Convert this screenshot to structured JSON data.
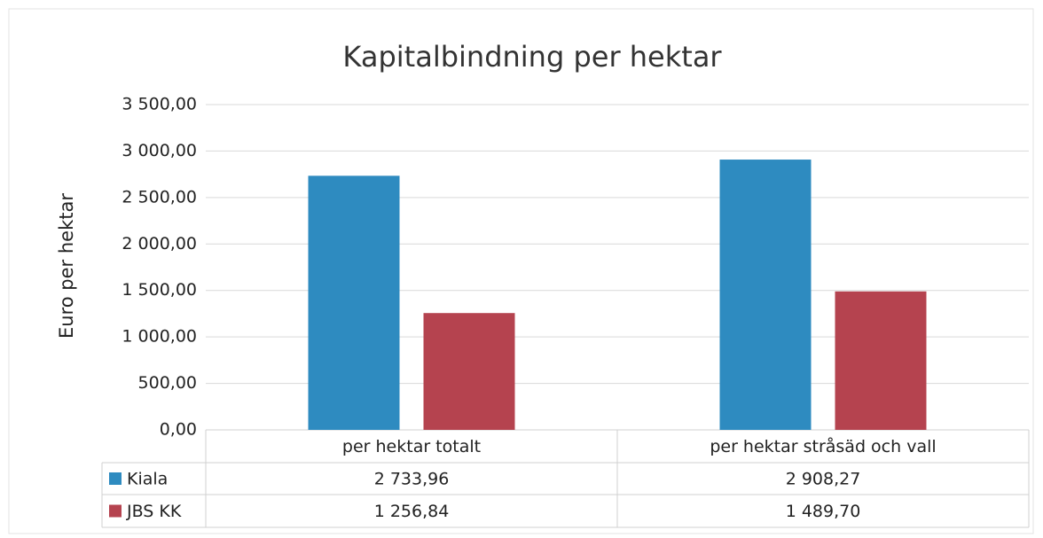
{
  "chart_data": {
    "type": "bar",
    "title": "Kapitalbindning per hektar",
    "y_label": "Euro per hektar",
    "categories": [
      "per hektar totalt",
      "per hektar stråsäd och vall"
    ],
    "series": [
      {
        "name": "Kiala",
        "color": "#2e8bc0",
        "values": [
          2733.96,
          2908.27
        ],
        "value_labels": [
          "2 733,96",
          "2 908,27"
        ]
      },
      {
        "name": "JBS KK",
        "color": "#b5434f",
        "values": [
          1256.84,
          1489.7
        ],
        "value_labels": [
          "1 256,84",
          "1 489,70"
        ]
      }
    ],
    "ylim": [
      0,
      3500
    ],
    "yticks": [
      {
        "value": 0,
        "label": "0,00"
      },
      {
        "value": 500,
        "label": "500,00"
      },
      {
        "value": 1000,
        "label": "1 000,00"
      },
      {
        "value": 1500,
        "label": "1 500,00"
      },
      {
        "value": 2000,
        "label": "2 000,00"
      },
      {
        "value": 2500,
        "label": "2 500,00"
      },
      {
        "value": 3000,
        "label": "3 000,00"
      },
      {
        "value": 3500,
        "label": "3 500,00"
      }
    ],
    "grid": true
  }
}
